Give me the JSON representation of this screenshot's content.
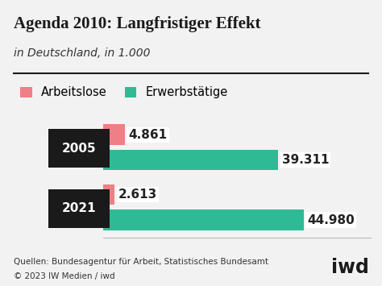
{
  "chart_data": {
    "type": "bar",
    "orientation": "horizontal",
    "title": "Agenda 2010: Langfristiger Effekt",
    "subtitle": "in Deutschland, in 1.000",
    "categories": [
      "2005",
      "2021"
    ],
    "series": [
      {
        "name": "Arbeitslose",
        "color": "#ee7f86",
        "values": [
          4861,
          2613
        ],
        "value_labels": [
          "4.861",
          "2.613"
        ]
      },
      {
        "name": "Erwerbstätige",
        "color": "#2fba96",
        "values": [
          39311,
          44980
        ],
        "value_labels": [
          "39.311",
          "44.980"
        ]
      }
    ],
    "xlim": [
      0,
      60000
    ],
    "xticks": [],
    "data_labels": true,
    "tick_labels": "y",
    "legend": "upper left",
    "grid": false,
    "source": "Quellen: Bundesagentur für Arbeit, Statistisches Bundesamt",
    "credit": "© 2023 IW Medien / iwd",
    "logo": "iwd"
  }
}
